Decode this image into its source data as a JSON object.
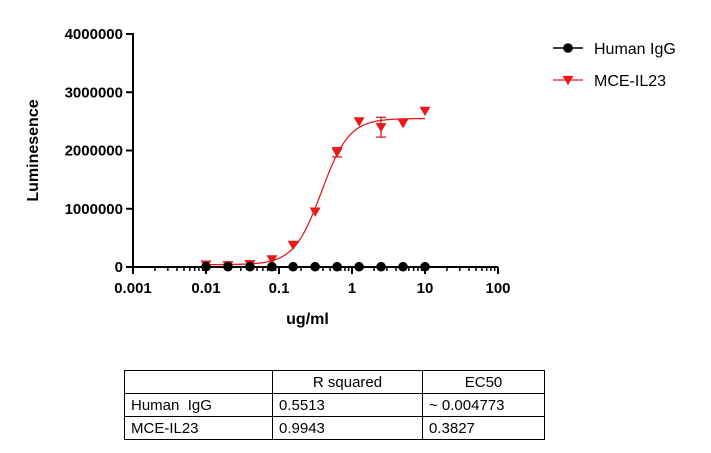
{
  "colors": {
    "human_igg": "#000000",
    "mce_il23": "#e8191b"
  },
  "chart_data": {
    "type": "scatter",
    "xscale": "log",
    "xlabel": "ug/ml",
    "ylabel": "Luminesence",
    "xlim": [
      0.001,
      100
    ],
    "ylim": [
      0,
      4000000
    ],
    "x_ticks": [
      0.001,
      0.01,
      0.1,
      1,
      10,
      100
    ],
    "x_tick_labels": [
      "0.001",
      "0.01",
      "0.1",
      "1",
      "10",
      "100"
    ],
    "y_ticks": [
      0,
      1000000,
      2000000,
      3000000,
      4000000
    ],
    "y_tick_labels": [
      "0",
      "1000000",
      "2000000",
      "3000000",
      "4000000"
    ],
    "legend_position": "top-right",
    "series": [
      {
        "name": "Human IgG",
        "marker": "circle",
        "color": "#000000",
        "x": [
          0.01,
          0.02,
          0.04,
          0.08,
          0.156,
          0.3125,
          0.625,
          1.25,
          2.5,
          5,
          10
        ],
        "y": [
          5000,
          5000,
          5000,
          5000,
          5000,
          5000,
          5000,
          5000,
          5000,
          5000,
          5000
        ],
        "fit": "flat"
      },
      {
        "name": "MCE-IL23",
        "marker": "triangle-down",
        "color": "#e8191b",
        "x": [
          0.01,
          0.02,
          0.04,
          0.08,
          0.156,
          0.3125,
          0.625,
          1.25,
          2.5,
          5,
          10
        ],
        "y": [
          40000,
          30000,
          50000,
          130000,
          380000,
          950000,
          1970000,
          2500000,
          2400000,
          2470000,
          2680000
        ],
        "error": [
          0,
          0,
          0,
          0,
          0,
          0,
          80000,
          0,
          170000,
          0,
          0
        ],
        "fit": {
          "model": "4PL",
          "bottom": 40000,
          "top": 2550000,
          "ec50": 0.3827,
          "hill": 2.3
        }
      }
    ]
  },
  "stats_table": {
    "headers": [
      "",
      "R squared",
      "EC50"
    ],
    "rows": [
      [
        "Human  IgG",
        "0.5513",
        "~ 0.004773"
      ],
      [
        "MCE-IL23",
        "0.9943",
        "0.3827"
      ]
    ]
  }
}
